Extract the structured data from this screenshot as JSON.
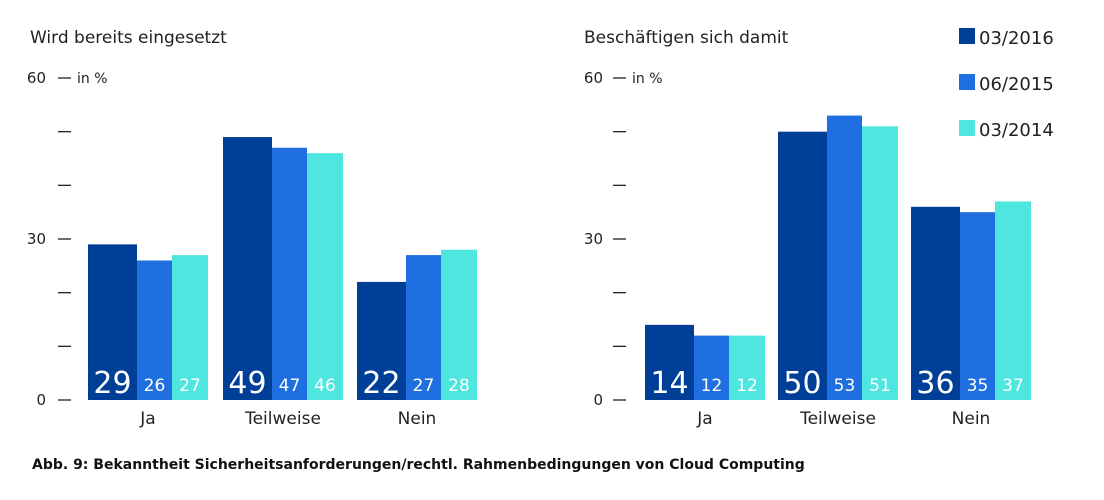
{
  "caption": "Abb. 9: Bekanntheit Sicherheitsanforderungen/rechtl. Rahmenbedingungen von Cloud Computing",
  "unit_label": "in %",
  "colors": {
    "03/2016": "#003f98",
    "06/2015": "#1f6fe0",
    "03/2014": "#4fe6e0"
  },
  "legend": [
    {
      "label": "03/2016",
      "color": "#003f98"
    },
    {
      "label": "06/2015",
      "color": "#1f6fe0"
    },
    {
      "label": "03/2014",
      "color": "#4fe6e0"
    }
  ],
  "chart_data": [
    {
      "type": "bar",
      "title": "Wird bereits eingesetzt",
      "ylabel": "in %",
      "ylim": [
        0,
        60
      ],
      "yticks": [
        0,
        10,
        20,
        30,
        40,
        50,
        60
      ],
      "ytick_labels": [
        "0",
        "",
        "",
        "30",
        "",
        "",
        "60"
      ],
      "categories": [
        "Ja",
        "Teilweise",
        "Nein"
      ],
      "series": [
        {
          "name": "03/2016",
          "values": [
            29,
            49,
            22
          ]
        },
        {
          "name": "06/2015",
          "values": [
            26,
            47,
            27
          ]
        },
        {
          "name": "03/2014",
          "values": [
            27,
            46,
            28
          ]
        }
      ]
    },
    {
      "type": "bar",
      "title": "Beschäftigen sich damit",
      "ylabel": "in %",
      "ylim": [
        0,
        60
      ],
      "yticks": [
        0,
        10,
        20,
        30,
        40,
        50,
        60
      ],
      "ytick_labels": [
        "0",
        "",
        "",
        "30",
        "",
        "",
        "60"
      ],
      "categories": [
        "Ja",
        "Teilweise",
        "Nein"
      ],
      "series": [
        {
          "name": "03/2016",
          "values": [
            14,
            50,
            36
          ]
        },
        {
          "name": "06/2015",
          "values": [
            12,
            53,
            35
          ]
        },
        {
          "name": "03/2014",
          "values": [
            12,
            51,
            37
          ]
        }
      ]
    }
  ]
}
